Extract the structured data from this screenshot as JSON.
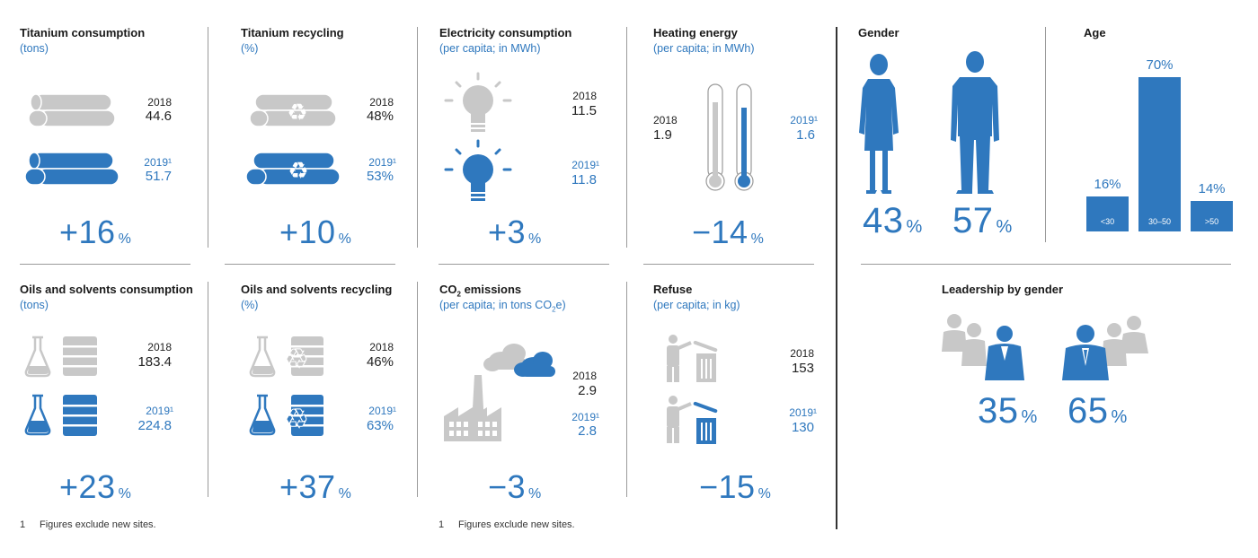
{
  "colors": {
    "accent": "#2f78be",
    "grey": "#c8c8c8",
    "text": "#1a1a1a"
  },
  "footnote": {
    "num": "1",
    "text": "Figures exclude new sites."
  },
  "panels": {
    "titanium_consumption": {
      "title": "Titanium consumption",
      "sub": "(tons)",
      "y2018": "2018",
      "v2018": "44.6",
      "y2019": "2019¹",
      "v2019": "51.7",
      "change": "+16",
      "unit": "%"
    },
    "titanium_recycling": {
      "title": "Titanium recycling",
      "sub": "(%)",
      "y2018": "2018",
      "v2018": "48%",
      "y2019": "2019¹",
      "v2019": "53%",
      "change": "+10",
      "unit": "%"
    },
    "electricity": {
      "title": "Electricity consumption",
      "sub": "(per capita; in MWh)",
      "y2018": "2018",
      "v2018": "11.5",
      "y2019": "2019¹",
      "v2019": "11.8",
      "change": "+3",
      "unit": "%"
    },
    "heating": {
      "title": "Heating energy",
      "sub": "(per capita; in MWh)",
      "y2018": "2018",
      "v2018": "1.9",
      "y2019": "2019¹",
      "v2019": "1.6",
      "change": "−14",
      "unit": "%"
    },
    "oils_consumption": {
      "title": "Oils and solvents consumption",
      "sub": "(tons)",
      "y2018": "2018",
      "v2018": "183.4",
      "y2019": "2019¹",
      "v2019": "224.8",
      "change": "+23",
      "unit": "%"
    },
    "oils_recycling": {
      "title": "Oils and solvents recycling",
      "sub": "(%)",
      "y2018": "2018",
      "v2018": "46%",
      "y2019": "2019¹",
      "v2019": "63%",
      "change": "+37",
      "unit": "%"
    },
    "co2": {
      "title_pre": "CO",
      "title_sub": "2",
      "title_post": " emissions",
      "sub_pre": "(per capita; in tons CO",
      "sub_sub": "2",
      "sub_post": "e)",
      "y2018": "2018",
      "v2018": "2.9",
      "y2019": "2019¹",
      "v2019": "2.8",
      "change": "−3",
      "unit": "%"
    },
    "refuse": {
      "title": "Refuse",
      "sub": "(per capita; in kg)",
      "y2018": "2018",
      "v2018": "153",
      "y2019": "2019¹",
      "v2019": "130",
      "change": "−15",
      "unit": "%"
    },
    "gender": {
      "title": "Gender",
      "female": "43",
      "male": "57",
      "unit": "%"
    },
    "leadership": {
      "title": "Leadership by gender",
      "female": "35",
      "male": "65",
      "unit": "%"
    }
  },
  "chart_data": {
    "type": "bar",
    "title": "Age",
    "categories": [
      "<30",
      "30–50",
      ">50"
    ],
    "values": [
      16,
      70,
      14
    ],
    "value_labels": [
      "16%",
      "70%",
      "14%"
    ],
    "ylim": [
      0,
      70
    ]
  }
}
